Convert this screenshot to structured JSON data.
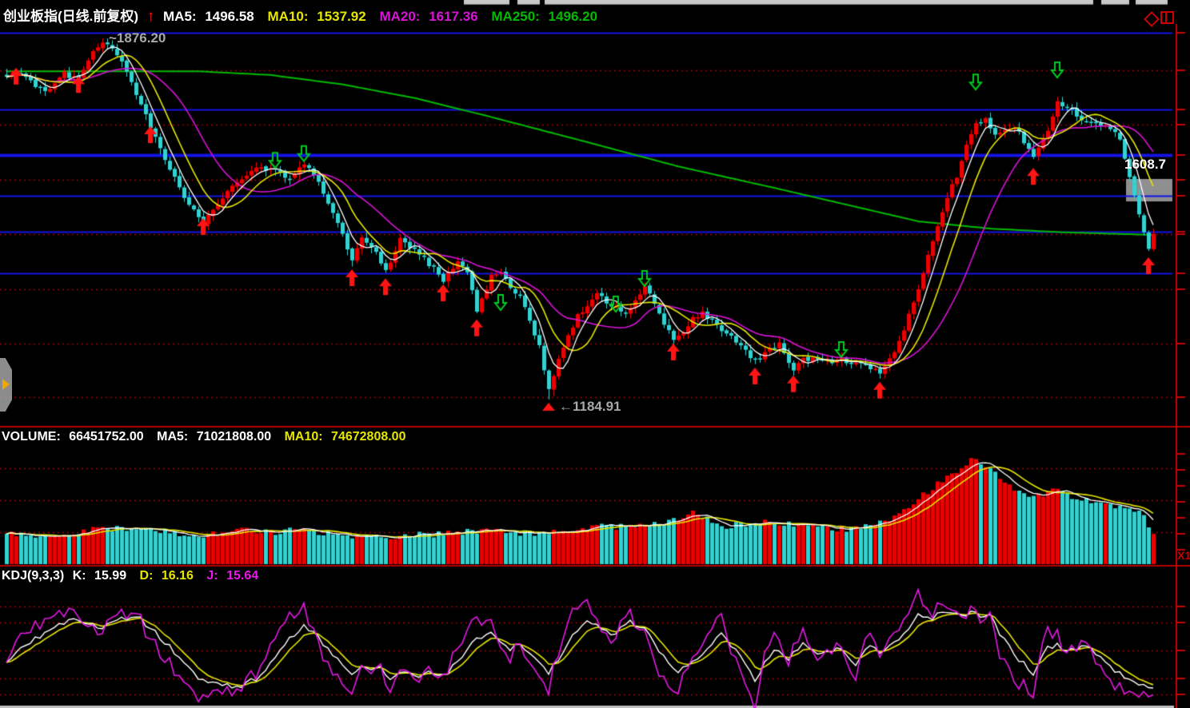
{
  "colors": {
    "bg": "#000000",
    "axis": "#cc0000",
    "panel_border": "#b30000",
    "grid_dotted": "#a00000",
    "candle_up": "#ee0000",
    "candle_down": "#33d1d1",
    "ma5": "#ffffff",
    "ma10": "#e6e600",
    "ma20": "#d813d8",
    "ma250": "#00bb00",
    "level_blue": "#1414e6",
    "k": "#ffffff",
    "d": "#e6e600",
    "j": "#e619e6",
    "text_white": "#ffffff",
    "text_gray": "#a8a8a8",
    "marker_buy": "#ff1414",
    "marker_sell": "#00cc22",
    "price_box": "#8f8f8f",
    "price_text": "#ffffff",
    "tab_arrow": "#f0a800",
    "strip": "#c8c8c8"
  },
  "header": {
    "symbol": "创业板指(日线.前复权)",
    "trend_icon": "↑",
    "items": [
      {
        "label": "MA5:",
        "value": "1496.58"
      },
      {
        "label": "MA10:",
        "value": "1537.92"
      },
      {
        "label": "MA20:",
        "value": "1617.36"
      },
      {
        "label": "MA250:",
        "value": "1496.20"
      }
    ]
  },
  "volume_header": {
    "items": [
      {
        "label": "VOLUME:",
        "value": "66451752.00"
      },
      {
        "label": "MA5:",
        "value": "71021808.00"
      },
      {
        "label": "MA10:",
        "value": "74672808.00"
      }
    ]
  },
  "kdj_header": {
    "title": "KDJ(9,3,3)",
    "items": [
      {
        "label": "K:",
        "value": "15.99"
      },
      {
        "label": "D:",
        "value": "16.16"
      },
      {
        "label": "J:",
        "value": "15.64"
      }
    ]
  },
  "annotations": {
    "high": "~1876.20",
    "low": "←1184.91",
    "price_marker": "1608.7",
    "multiplier": "X1"
  },
  "chart_data": [
    {
      "type": "candlestick",
      "title": "创业板指 daily, forward-adjusted",
      "bars": 240,
      "seed": 20240613,
      "price_axis": {
        "max": 1899,
        "min": 1139
      },
      "high_point": {
        "index": 20,
        "value": 1876.2
      },
      "low_point": {
        "index": 113,
        "value": 1184.91
      },
      "last_close": 1502,
      "levels_blue": [
        1887,
        1740,
        1653,
        1575,
        1506,
        1427
      ],
      "levels_blue_thick": 1653,
      "levels_dotted": [
        1815,
        1711,
        1606,
        1502,
        1396,
        1292,
        1190
      ],
      "close_keypoints": [
        [
          0,
          1800
        ],
        [
          2,
          1812
        ],
        [
          5,
          1795
        ],
        [
          8,
          1772
        ],
        [
          12,
          1808
        ],
        [
          15,
          1796
        ],
        [
          18,
          1852
        ],
        [
          20,
          1872
        ],
        [
          22,
          1856
        ],
        [
          24,
          1836
        ],
        [
          27,
          1772
        ],
        [
          30,
          1706
        ],
        [
          33,
          1648
        ],
        [
          36,
          1588
        ],
        [
          39,
          1545
        ],
        [
          41,
          1524
        ],
        [
          44,
          1562
        ],
        [
          47,
          1592
        ],
        [
          50,
          1614
        ],
        [
          53,
          1630
        ],
        [
          56,
          1622
        ],
        [
          59,
          1610
        ],
        [
          62,
          1632
        ],
        [
          64,
          1615
        ],
        [
          66,
          1580
        ],
        [
          68,
          1545
        ],
        [
          70,
          1500
        ],
        [
          72,
          1452
        ],
        [
          74,
          1495
        ],
        [
          76,
          1480
        ],
        [
          79,
          1428
        ],
        [
          82,
          1490
        ],
        [
          85,
          1470
        ],
        [
          88,
          1445
        ],
        [
          91,
          1415
        ],
        [
          94,
          1452
        ],
        [
          96,
          1430
        ],
        [
          98,
          1355
        ],
        [
          101,
          1420
        ],
        [
          103,
          1428
        ],
        [
          105,
          1400
        ],
        [
          107,
          1385
        ],
        [
          109,
          1340
        ],
        [
          111,
          1285
        ],
        [
          113,
          1205
        ],
        [
          115,
          1260
        ],
        [
          117,
          1305
        ],
        [
          119,
          1345
        ],
        [
          121,
          1368
        ],
        [
          123,
          1388
        ],
        [
          125,
          1370
        ],
        [
          127,
          1362
        ],
        [
          129,
          1345
        ],
        [
          131,
          1375
        ],
        [
          133,
          1398
        ],
        [
          135,
          1370
        ],
        [
          137,
          1330
        ],
        [
          139,
          1298
        ],
        [
          141,
          1315
        ],
        [
          143,
          1340
        ],
        [
          145,
          1352
        ],
        [
          147,
          1335
        ],
        [
          149,
          1320
        ],
        [
          151,
          1305
        ],
        [
          153,
          1285
        ],
        [
          156,
          1258
        ],
        [
          158,
          1275
        ],
        [
          161,
          1292
        ],
        [
          164,
          1240
        ],
        [
          166,
          1262
        ],
        [
          169,
          1262
        ],
        [
          172,
          1258
        ],
        [
          174,
          1262
        ],
        [
          176,
          1255
        ],
        [
          179,
          1252
        ],
        [
          182,
          1238
        ],
        [
          184,
          1262
        ],
        [
          186,
          1295
        ],
        [
          188,
          1345
        ],
        [
          190,
          1398
        ],
        [
          192,
          1462
        ],
        [
          194,
          1520
        ],
        [
          196,
          1572
        ],
        [
          198,
          1612
        ],
        [
          200,
          1668
        ],
        [
          202,
          1712
        ],
        [
          204,
          1722
        ],
        [
          206,
          1690
        ],
        [
          208,
          1698
        ],
        [
          210,
          1708
        ],
        [
          212,
          1678
        ],
        [
          214,
          1652
        ],
        [
          216,
          1682
        ],
        [
          218,
          1722
        ],
        [
          219,
          1756
        ],
        [
          221,
          1742
        ],
        [
          223,
          1730
        ],
        [
          225,
          1716
        ],
        [
          227,
          1712
        ],
        [
          229,
          1708
        ],
        [
          231,
          1692
        ],
        [
          232,
          1678
        ],
        [
          234,
          1612
        ],
        [
          236,
          1540
        ],
        [
          238,
          1478
        ],
        [
          239,
          1502
        ]
      ],
      "ma250_keypoints": [
        [
          0,
          1813
        ],
        [
          40,
          1813
        ],
        [
          55,
          1806
        ],
        [
          70,
          1788
        ],
        [
          85,
          1762
        ],
        [
          100,
          1728
        ],
        [
          120,
          1680
        ],
        [
          140,
          1631
        ],
        [
          160,
          1590
        ],
        [
          175,
          1558
        ],
        [
          190,
          1526
        ],
        [
          205,
          1512
        ],
        [
          220,
          1505
        ],
        [
          239,
          1500
        ]
      ],
      "buy_markers": [
        [
          2,
          1820
        ],
        [
          15,
          1804
        ],
        [
          30,
          1708
        ],
        [
          41,
          1532
        ],
        [
          72,
          1434
        ],
        [
          79,
          1417
        ],
        [
          91,
          1405
        ],
        [
          98,
          1338
        ],
        [
          139,
          1292
        ],
        [
          156,
          1246
        ],
        [
          164,
          1231
        ],
        [
          182,
          1219
        ],
        [
          214,
          1628
        ],
        [
          238,
          1457
        ]
      ],
      "sell_markers": [
        [
          56,
          1628
        ],
        [
          62,
          1641
        ],
        [
          103,
          1356
        ],
        [
          127,
          1353
        ],
        [
          133,
          1402
        ],
        [
          174,
          1266
        ],
        [
          202,
          1778
        ],
        [
          219,
          1801
        ]
      ],
      "price_marker": {
        "value": 1608.7,
        "box_top_price": 1607,
        "box_bottom_price": 1564
      },
      "mas": [
        {
          "period": 5,
          "color": "ma5"
        },
        {
          "period": 10,
          "color": "ma10"
        },
        {
          "period": 20,
          "color": "ma20"
        },
        {
          "period": 250,
          "color": "ma250"
        }
      ]
    },
    {
      "type": "bar",
      "title": "VOLUME",
      "current": 66451752,
      "ma5": 71021808,
      "ma10": 74672808,
      "axis_max_millions": 260,
      "gridlines_millions": [
        210,
        140,
        70
      ],
      "volume_keypoints_millions": [
        [
          0,
          70
        ],
        [
          5,
          62
        ],
        [
          10,
          66
        ],
        [
          15,
          72
        ],
        [
          20,
          82
        ],
        [
          25,
          74
        ],
        [
          30,
          78
        ],
        [
          35,
          68
        ],
        [
          40,
          64
        ],
        [
          45,
          70
        ],
        [
          50,
          74
        ],
        [
          55,
          70
        ],
        [
          60,
          76
        ],
        [
          65,
          68
        ],
        [
          70,
          64
        ],
        [
          75,
          62
        ],
        [
          80,
          60
        ],
        [
          85,
          64
        ],
        [
          90,
          66
        ],
        [
          95,
          70
        ],
        [
          100,
          74
        ],
        [
          105,
          70
        ],
        [
          110,
          68
        ],
        [
          115,
          72
        ],
        [
          120,
          78
        ],
        [
          125,
          84
        ],
        [
          130,
          80
        ],
        [
          135,
          86
        ],
        [
          140,
          98
        ],
        [
          143,
          118
        ],
        [
          146,
          98
        ],
        [
          150,
          84
        ],
        [
          155,
          90
        ],
        [
          160,
          94
        ],
        [
          165,
          86
        ],
        [
          170,
          80
        ],
        [
          175,
          78
        ],
        [
          180,
          84
        ],
        [
          185,
          102
        ],
        [
          188,
          128
        ],
        [
          191,
          152
        ],
        [
          194,
          178
        ],
        [
          197,
          198
        ],
        [
          200,
          222
        ],
        [
          202,
          232
        ],
        [
          204,
          218
        ],
        [
          206,
          198
        ],
        [
          208,
          182
        ],
        [
          210,
          162
        ],
        [
          213,
          148
        ],
        [
          216,
          154
        ],
        [
          219,
          166
        ],
        [
          222,
          150
        ],
        [
          225,
          140
        ],
        [
          228,
          134
        ],
        [
          231,
          128
        ],
        [
          234,
          122
        ],
        [
          237,
          105
        ],
        [
          239,
          66.45
        ]
      ]
    },
    {
      "type": "line",
      "title": "KDJ(9,3,3)",
      "k": 15.99,
      "d": 16.16,
      "j": 15.64,
      "axis": {
        "min": -2,
        "max": 125
      },
      "gridlines": [
        90,
        75,
        50,
        25,
        10
      ],
      "k_keypoints": [
        [
          0,
          40
        ],
        [
          3,
          52
        ],
        [
          6,
          60
        ],
        [
          10,
          70
        ],
        [
          13,
          79
        ],
        [
          16,
          73
        ],
        [
          20,
          70
        ],
        [
          24,
          80
        ],
        [
          28,
          78
        ],
        [
          32,
          62
        ],
        [
          36,
          44
        ],
        [
          40,
          26
        ],
        [
          44,
          20
        ],
        [
          48,
          17
        ],
        [
          52,
          24
        ],
        [
          55,
          38
        ],
        [
          58,
          56
        ],
        [
          62,
          73
        ],
        [
          65,
          62
        ],
        [
          68,
          45
        ],
        [
          72,
          28
        ],
        [
          74,
          34
        ],
        [
          76,
          30
        ],
        [
          78,
          34
        ],
        [
          80,
          25
        ],
        [
          83,
          30
        ],
        [
          85,
          26
        ],
        [
          88,
          30
        ],
        [
          91,
          26
        ],
        [
          94,
          40
        ],
        [
          97,
          56
        ],
        [
          101,
          67
        ],
        [
          103,
          58
        ],
        [
          105,
          50
        ],
        [
          107,
          58
        ],
        [
          109,
          48
        ],
        [
          111,
          38
        ],
        [
          113,
          30
        ],
        [
          115,
          42
        ],
        [
          118,
          62
        ],
        [
          121,
          76
        ],
        [
          123,
          72
        ],
        [
          126,
          64
        ],
        [
          128,
          70
        ],
        [
          130,
          76
        ],
        [
          133,
          68
        ],
        [
          136,
          50
        ],
        [
          140,
          30
        ],
        [
          143,
          38
        ],
        [
          146,
          52
        ],
        [
          149,
          66
        ],
        [
          152,
          50
        ],
        [
          156,
          24
        ],
        [
          159,
          45
        ],
        [
          161,
          52
        ],
        [
          163,
          42
        ],
        [
          166,
          58
        ],
        [
          168,
          50
        ],
        [
          170,
          45
        ],
        [
          172,
          50
        ],
        [
          174,
          52
        ],
        [
          177,
          37
        ],
        [
          180,
          55
        ],
        [
          182,
          48
        ],
        [
          184,
          52
        ],
        [
          187,
          65
        ],
        [
          190,
          82
        ],
        [
          193,
          80
        ],
        [
          196,
          84
        ],
        [
          199,
          80
        ],
        [
          201,
          86
        ],
        [
          203,
          80
        ],
        [
          205,
          82
        ],
        [
          207,
          66
        ],
        [
          210,
          46
        ],
        [
          214,
          30
        ],
        [
          217,
          52
        ],
        [
          219,
          56
        ],
        [
          221,
          48
        ],
        [
          223,
          52
        ],
        [
          225,
          56
        ],
        [
          227,
          48
        ],
        [
          230,
          34
        ],
        [
          233,
          26
        ],
        [
          236,
          21
        ],
        [
          239,
          15.99
        ]
      ]
    }
  ]
}
